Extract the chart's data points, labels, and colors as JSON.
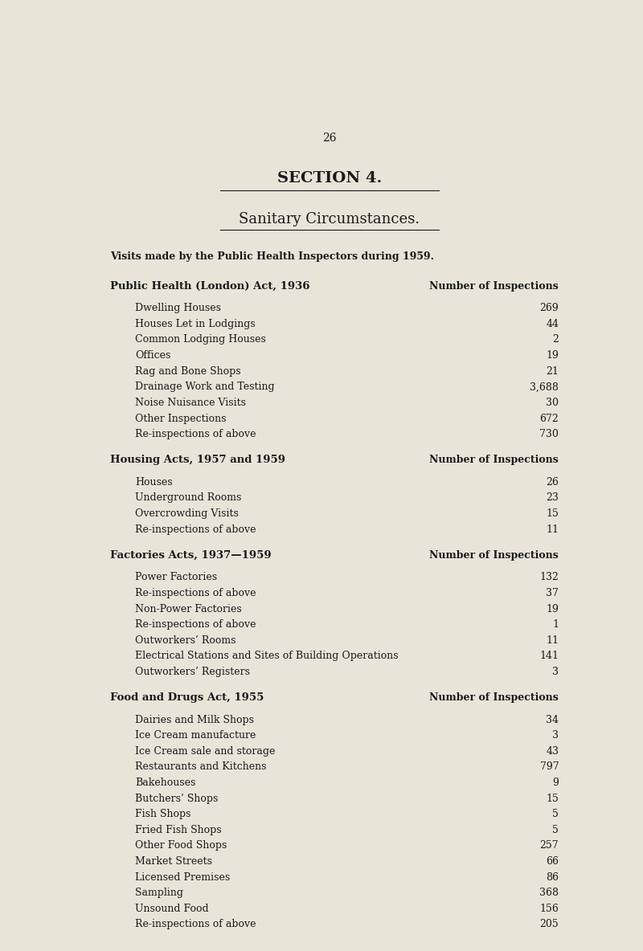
{
  "page_number": "26",
  "title1": "SECTION 4.",
  "title2": "Sanitary Circumstances.",
  "subtitle": "Visits made by the Public Health Inspectors during 1959.",
  "background_color": "#e8e4d8",
  "text_color": "#1a1a1a",
  "sections": [
    {
      "header": "Public Health (London) Act, 1936",
      "header_right": "Number of Inspections",
      "items": [
        [
          "Dwelling Houses",
          "269"
        ],
        [
          "Houses Let in Lodgings",
          "44"
        ],
        [
          "Common Lodging Houses",
          "2"
        ],
        [
          "Offices",
          "19"
        ],
        [
          "Rag and Bone Shops",
          "21"
        ],
        [
          "Drainage Work and Testing",
          "3,688"
        ],
        [
          "Noise Nuisance Visits",
          "30"
        ],
        [
          "Other Inspections",
          "672"
        ],
        [
          "Re-inspections of above",
          "730"
        ]
      ]
    },
    {
      "header": "Housing Acts, 1957 and 1959",
      "header_right": "Number of Inspections",
      "items": [
        [
          "Houses",
          "26"
        ],
        [
          "Underground Rooms",
          "23"
        ],
        [
          "Overcrowding Visits",
          "15"
        ],
        [
          "Re-inspections of above",
          "11"
        ]
      ]
    },
    {
      "header": "Factories Acts, 1937—1959",
      "header_right": "Number of Inspections",
      "items": [
        [
          "Power Factories",
          "132"
        ],
        [
          "Re-inspections of above",
          "37"
        ],
        [
          "Non-Power Factories",
          "19"
        ],
        [
          "Re-inspections of above",
          "1"
        ],
        [
          "Outworkers’ Rooms",
          "11"
        ],
        [
          "Electrical Stations and Sites of Building Operations",
          "141"
        ],
        [
          "Outworkers’ Registers",
          "3"
        ]
      ]
    },
    {
      "header": "Food and Drugs Act, 1955",
      "header_right": "Number of Inspections",
      "items": [
        [
          "Dairies and Milk Shops",
          "34"
        ],
        [
          "Ice Cream manufacture",
          "3"
        ],
        [
          "Ice Cream sale and storage",
          "43"
        ],
        [
          "Restaurants and Kitchens",
          "797"
        ],
        [
          "Bakehouses",
          "9"
        ],
        [
          "Butchers’ Shops",
          "15"
        ],
        [
          "Fish Shops",
          "5"
        ],
        [
          "Fried Fish Shops",
          "5"
        ],
        [
          "Other Food Shops",
          "257"
        ],
        [
          "Market Streets",
          "66"
        ],
        [
          "Licensed Premises",
          "86"
        ],
        [
          "Sampling",
          "368"
        ],
        [
          "Unsound Food",
          "156"
        ],
        [
          "Re-inspections of above",
          "205"
        ]
      ]
    }
  ]
}
